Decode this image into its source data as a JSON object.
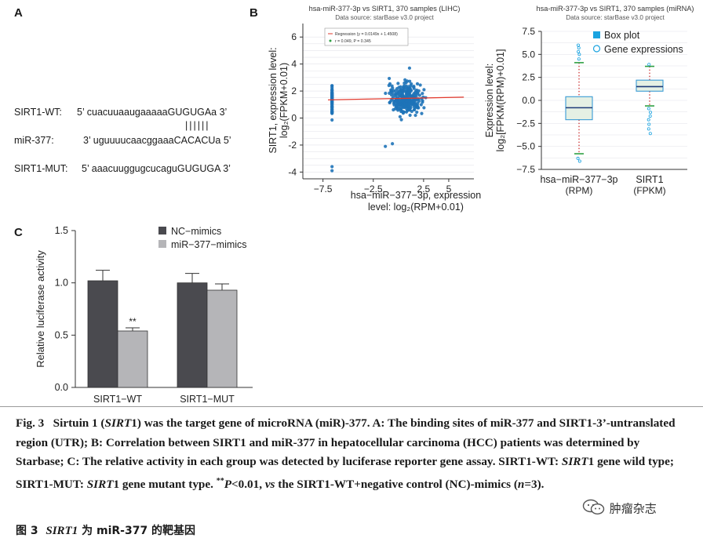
{
  "panels": {
    "a": {
      "letter": "A",
      "rows": [
        {
          "label": "SIRT1-WT:",
          "seq": "5’ cuacuuaaugaaaaaGUGUGAa 3’"
        },
        {
          "label": "miR-377:",
          "seq": "3’ uguuuucaacggaaaCACACUa 5’"
        },
        {
          "label": "SIRT1-MUT:",
          "seq": "5’ aaacuuggugcucaguGUGUGA 3’"
        }
      ],
      "pairing": "||||||"
    },
    "b": {
      "letter": "B"
    },
    "c": {
      "letter": "C"
    }
  },
  "chart_data": [
    {
      "type": "scatter",
      "title": "hsa-miR-377-3p vs SIRT1, 370 samples (LIHC)",
      "subtitle": "Data source: starBase v3.0 project",
      "xlabel": "hsa-miR-377-3p, expression level: log2(RPM+0.01)",
      "ylabel": "SIRT1, expression level: log2(FPKM+0.01)",
      "xlim": [
        -9.5,
        7.5
      ],
      "ylim": [
        -4.5,
        7
      ],
      "xticks": [
        "-7.5",
        "-2.5",
        "2.5",
        "5"
      ],
      "yticks": [
        "-4",
        "-2",
        "0",
        "2",
        "4",
        "6"
      ],
      "legend": [
        "Regression (y = 0.0149x + 1.4508)",
        "r = 0.049, P = 0.345"
      ],
      "regression": {
        "slope": 0.0149,
        "intercept": 1.4508
      },
      "n_samples": 370
    },
    {
      "type": "box",
      "title": "hsa-miR-377-3p vs SIRT1, 370 samples (miRNA)",
      "subtitle": "Data source: starBase v3.0 project",
      "ylabel": "Expression level: log2[FPKM(RPM)+0.01]",
      "ylim": [
        -7.5,
        7.5
      ],
      "yticks": [
        "7.5",
        "5.0",
        "2.5",
        "0.0",
        "-2.5",
        "-5.0",
        "-7.5"
      ],
      "legend": [
        "Box plot",
        "Gene expressions"
      ],
      "categories": [
        "hsa-miR-377-3p (RPM)",
        "SIRT1 (FPKM)"
      ],
      "cat_lines": [
        [
          "hsa-miR-377-3p",
          "(RPM)"
        ],
        [
          "SIRT1",
          "(FPKM)"
        ]
      ],
      "boxes": [
        {
          "q1": -2.1,
          "median": -0.8,
          "q3": 0.4,
          "whisker_low": -5.8,
          "whisker_high": 4.1
        },
        {
          "q1": 1.0,
          "median": 1.5,
          "q3": 2.2,
          "whisker_low": -0.6,
          "whisker_high": 3.7
        }
      ],
      "colors": {
        "box_fill": "#e5f0e4",
        "box_edge": "#3a9bd5",
        "median": "#1d3a78",
        "whisker": "#d04040",
        "cap": "#2ea043"
      }
    },
    {
      "type": "bar",
      "ylabel": "Relative luciferase activity",
      "ylim": [
        0,
        1.5
      ],
      "yticks": [
        "0.0",
        "0.5",
        "1.0",
        "1.5"
      ],
      "categories": [
        "SIRT1-WT",
        "SIRT1-MUT"
      ],
      "series": [
        {
          "name": "NC-mimics",
          "values": [
            1.02,
            1.0
          ],
          "errors": [
            0.1,
            0.09
          ],
          "color": "#4a4a4f"
        },
        {
          "name": "miR-377-mimics",
          "values": [
            0.54,
            0.93
          ],
          "errors": [
            0.03,
            0.06
          ],
          "color": "#b5b5b8"
        }
      ],
      "annotation": "**"
    }
  ],
  "caption": {
    "fig": "Fig. 3",
    "body_1": "Sirtuin 1 (",
    "gene": "SIRT",
    "body_2": "1) was the target gene of microRNA (miR)-377. A: The binding sites of miR-377 and SIRT1-3’-untranslated region (UTR); B: Correlation between SIRT1 and miR-377 in hepatocellular carcinoma (HCC) patients was determined by Starbase; C: The relative activity in each group was detected by luciferase reporter gene assay. SIRT1-WT: ",
    "body_3": "1 gene wild type; SIRT1-MUT: ",
    "body_4": "1 gene mutant type. ",
    "sig_mark": "**",
    "p_letter": "P",
    "body_5": "<0.01, ",
    "vs_word": "vs",
    "body_6": " the SIRT1-WT+negative control (NC)-mimics (",
    "n_letter": "n",
    "body_7": "=3)."
  },
  "cn_caption": {
    "label": "图 3",
    "gene": "SIRT1",
    "text": "为 miR-377 的靶基因"
  },
  "watermark": {
    "icon": "wechat-icon",
    "text": "肿瘤杂志"
  }
}
